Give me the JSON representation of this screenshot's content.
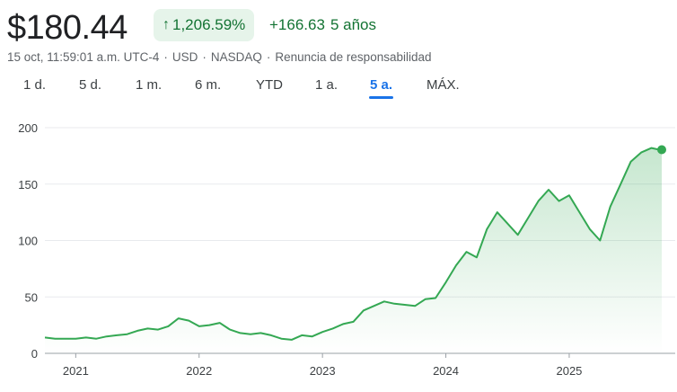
{
  "quote": {
    "price": "$180.44",
    "change_percent": "1,206.59%",
    "change_abs": "+166.63",
    "change_period": "5 años",
    "up_arrow_icon": "arrow-up-icon",
    "timestamp": "15 oct, 11:59:01 a.m. UTC-4",
    "currency": "USD",
    "exchange": "NASDAQ",
    "disclaimer": "Renuncia de responsabilidad",
    "separator": "·"
  },
  "range_tabs": [
    {
      "label": "1 d."
    },
    {
      "label": "5 d."
    },
    {
      "label": "1 m."
    },
    {
      "label": "6 m."
    },
    {
      "label": "YTD"
    },
    {
      "label": "1 a."
    },
    {
      "label": "5 a."
    },
    {
      "label": "MÁX."
    }
  ],
  "active_tab": "5 a.",
  "colors": {
    "line": "#34a853",
    "positive_text": "#137333",
    "pill_bg": "#e6f4ea",
    "active_tab": "#1a73e8",
    "grid": "#e8eaed"
  },
  "chart_data": {
    "type": "area",
    "y_ticks": [
      "0",
      "50",
      "100",
      "150",
      "200"
    ],
    "x_ticks": [
      "2021",
      "2022",
      "2023",
      "2024",
      "2025"
    ],
    "ylim": [
      0,
      200
    ],
    "grid": "horizontal",
    "x": [
      "2020-10",
      "2020-11",
      "2020-12",
      "2021-01",
      "2021-02",
      "2021-03",
      "2021-04",
      "2021-05",
      "2021-06",
      "2021-07",
      "2021-08",
      "2021-09",
      "2021-10",
      "2021-11",
      "2021-12",
      "2022-01",
      "2022-02",
      "2022-03",
      "2022-04",
      "2022-05",
      "2022-06",
      "2022-07",
      "2022-08",
      "2022-09",
      "2022-10",
      "2022-11",
      "2022-12",
      "2023-01",
      "2023-02",
      "2023-03",
      "2023-04",
      "2023-05",
      "2023-06",
      "2023-07",
      "2023-08",
      "2023-09",
      "2023-10",
      "2023-11",
      "2023-12",
      "2024-01",
      "2024-02",
      "2024-03",
      "2024-04",
      "2024-05",
      "2024-06",
      "2024-07",
      "2024-08",
      "2024-09",
      "2024-10",
      "2024-11",
      "2024-12",
      "2025-01",
      "2025-02",
      "2025-03",
      "2025-04",
      "2025-05",
      "2025-06",
      "2025-07",
      "2025-08",
      "2025-09",
      "2025-10"
    ],
    "values": [
      14,
      13,
      13,
      13,
      14,
      13,
      15,
      16,
      17,
      20,
      22,
      21,
      24,
      31,
      29,
      24,
      25,
      27,
      21,
      18,
      17,
      18,
      16,
      13,
      12,
      16,
      15,
      19,
      22,
      26,
      28,
      38,
      42,
      46,
      44,
      43,
      42,
      48,
      49,
      63,
      78,
      90,
      85,
      110,
      125,
      115,
      105,
      120,
      135,
      145,
      135,
      140,
      125,
      110,
      100,
      130,
      150,
      170,
      178,
      182,
      180
    ],
    "last_point": {
      "x": "2025-10",
      "value": 180.44
    }
  }
}
